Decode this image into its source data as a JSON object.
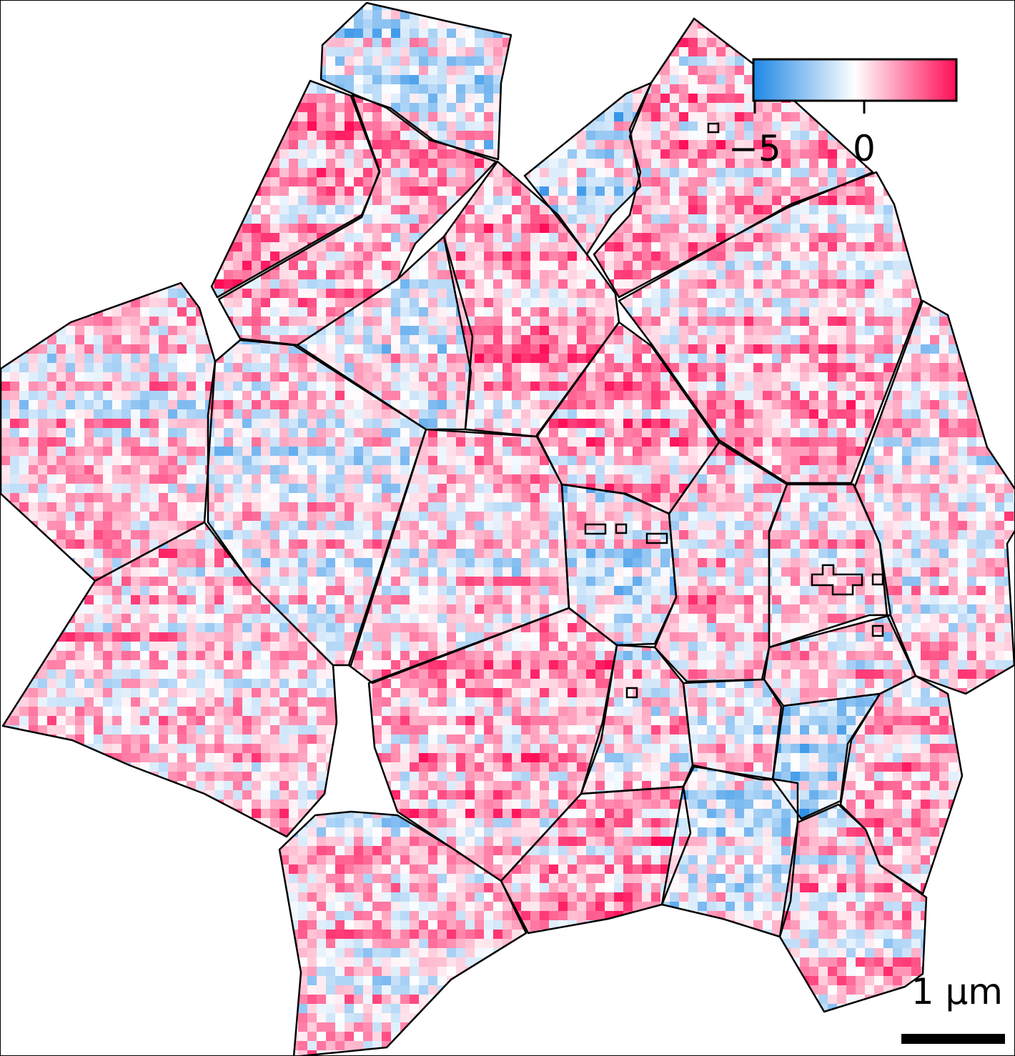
{
  "colorbar": {
    "tick_labels": [
      "−5",
      "0"
    ],
    "colors": {
      "low": "#1e88e5",
      "mid": "#ffffff",
      "high": "#ff0d57"
    }
  },
  "scale_bar": {
    "label": "1 µm"
  },
  "map": {
    "grain_count": 29,
    "boundary_color": "#000000"
  }
}
